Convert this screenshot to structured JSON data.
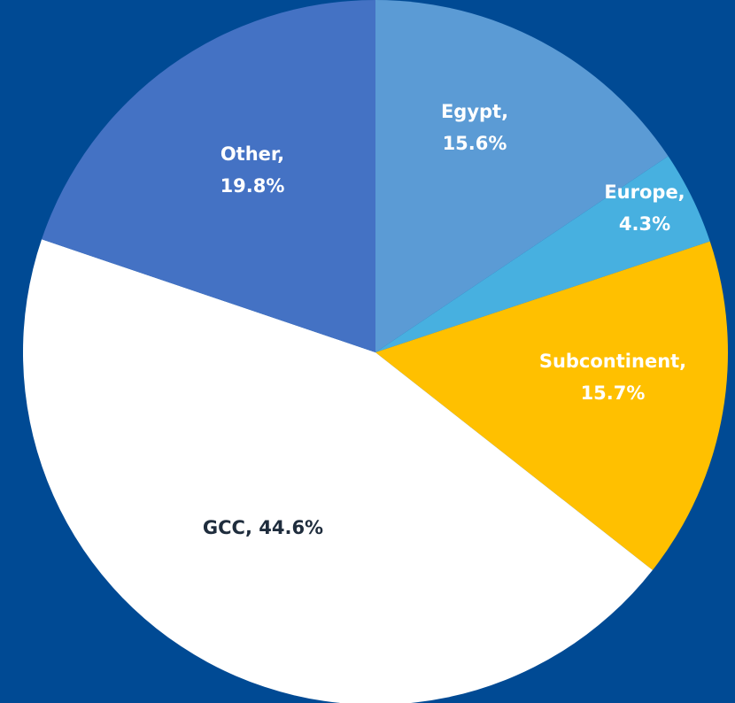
{
  "chart_data": {
    "type": "pie",
    "background_color": "#004a94",
    "slices": [
      {
        "category": "Egypt",
        "value": 15.6,
        "label_line1": "Egypt,",
        "label_line2": "15.6%",
        "color": "#5b9bd5",
        "label_color": "#ffffff"
      },
      {
        "category": "Europe",
        "value": 4.3,
        "label_line1": "Europe,",
        "label_line2": "4.3%",
        "color": "#47b0e0",
        "label_color": "#ffffff"
      },
      {
        "category": "Subcontinent",
        "value": 15.7,
        "label_line1": "Subcontinent,",
        "label_line2": "15.7%",
        "color": "#ffc000",
        "label_color": "#ffffff"
      },
      {
        "category": "GCC",
        "value": 44.6,
        "label_line1": "GCC, 44.6%",
        "label_line2": "",
        "color": "#ffffff",
        "label_color": "#1f2d3d"
      },
      {
        "category": "Other",
        "value": 19.8,
        "label_line1": "Other,",
        "label_line2": "19.8%",
        "color": "#4472c4",
        "label_color": "#ffffff"
      }
    ],
    "start_angle_deg": 0,
    "direction": "clockwise"
  }
}
